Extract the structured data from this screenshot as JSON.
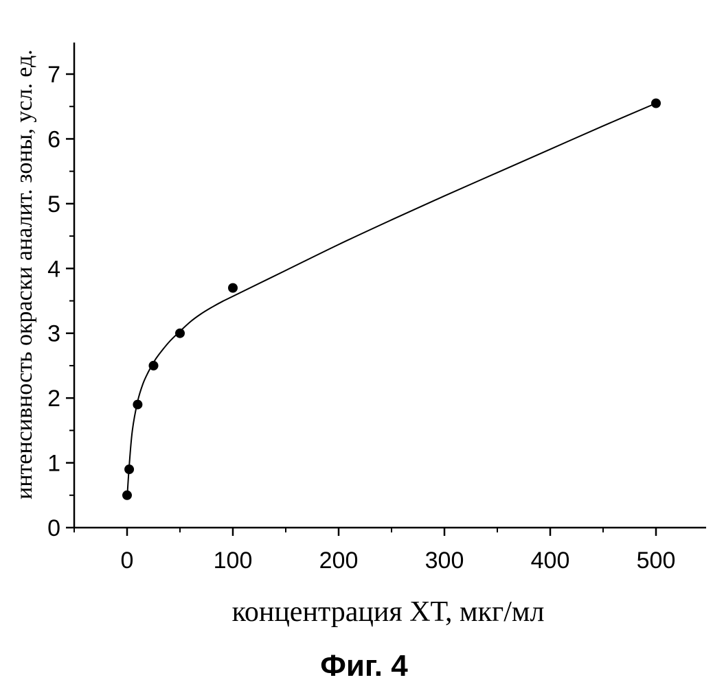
{
  "chart_data": {
    "type": "scatter",
    "title": "",
    "caption": "Фиг. 4",
    "xlabel": "концентрация ХТ, мкг/мл",
    "ylabel": "интенсивность окраски аналит. зоны, усл. ед.",
    "xlim": [
      -50,
      550
    ],
    "ylim": [
      0,
      7.5
    ],
    "x_ticks": [
      0,
      100,
      200,
      300,
      400,
      500
    ],
    "y_ticks": [
      0,
      1,
      2,
      3,
      4,
      5,
      6,
      7
    ],
    "grid": false,
    "series": [
      {
        "x": [
          0,
          2,
          10,
          25,
          50,
          100,
          500
        ],
        "y": [
          0.5,
          0.9,
          1.9,
          2.5,
          3.0,
          3.7,
          6.55
        ]
      }
    ],
    "fit_curve": {
      "x": [
        0,
        2,
        5,
        10,
        15,
        20,
        25,
        30,
        40,
        50,
        60,
        70,
        80,
        90,
        100,
        150,
        200,
        250,
        300,
        350,
        400,
        450,
        500
      ],
      "y": [
        0.45,
        0.95,
        1.5,
        1.95,
        2.22,
        2.4,
        2.55,
        2.67,
        2.87,
        3.03,
        3.18,
        3.3,
        3.4,
        3.49,
        3.57,
        3.97,
        4.37,
        4.75,
        5.12,
        5.48,
        5.84,
        6.2,
        6.55
      ]
    }
  }
}
